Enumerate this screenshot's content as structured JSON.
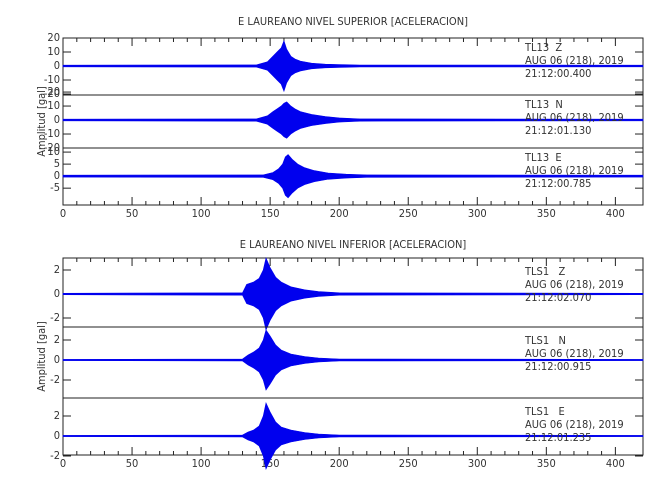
{
  "chart_data": [
    {
      "type": "area",
      "title": "E LAUREANO NIVEL SUPERIOR [ACELERACION]",
      "ylabel": "Amplitud [gal]",
      "color": "#0000ee",
      "xlim": [
        0,
        420
      ],
      "xticks": [
        0,
        50,
        100,
        150,
        200,
        250,
        300,
        350,
        400
      ],
      "panels": [
        {
          "labels": [
            "TL13  Z",
            "AUG 06 (218), 2019",
            "21:12:00.400"
          ],
          "ylim": [
            -20.7,
            20
          ],
          "yticks": [
            -20,
            -10,
            0,
            10,
            20
          ],
          "x": [
            0,
            140,
            148,
            152,
            155,
            158,
            160,
            162,
            165,
            168,
            172,
            180,
            190,
            200,
            215,
            420
          ],
          "values": [
            0.6,
            0.8,
            3,
            7,
            10,
            13,
            18,
            12,
            7,
            5,
            3.5,
            2,
            1.3,
            1,
            0.7,
            0.6
          ]
        },
        {
          "labels": [
            "TL13  N",
            "AUG 06 (218), 2019",
            "21:12:01.130"
          ],
          "ylim": [
            -20,
            17.9
          ],
          "yticks": [
            -20,
            -10,
            0,
            10,
            20
          ],
          "x": [
            0,
            140,
            148,
            152,
            155,
            158,
            160,
            162,
            165,
            168,
            172,
            180,
            190,
            200,
            215,
            420
          ],
          "values": [
            0.6,
            0.8,
            3,
            6,
            8,
            10,
            12,
            13,
            10,
            8,
            6,
            4,
            2.5,
            1.5,
            0.8,
            0.6
          ]
        },
        {
          "labels": [
            "TL13  E",
            "AUG 06 (218), 2019",
            "21:12:00.785"
          ],
          "ylim": [
            -12,
            11.7
          ],
          "yticks": [
            -5,
            0,
            5,
            10
          ],
          "x": [
            0,
            145,
            152,
            156,
            159,
            161,
            163,
            166,
            170,
            175,
            182,
            192,
            205,
            220,
            420
          ],
          "values": [
            0.4,
            0.5,
            1.5,
            3,
            5,
            8,
            9,
            7,
            5,
            3.5,
            2.3,
            1.3,
            0.8,
            0.5,
            0.4
          ]
        }
      ]
    },
    {
      "type": "area",
      "title": "E LAUREANO NIVEL INFERIOR [ACELERACION]",
      "ylabel": "Amplitud [gal]",
      "color": "#0000ee",
      "xlim": [
        0,
        420
      ],
      "xticks": [
        0,
        50,
        100,
        150,
        200,
        250,
        300,
        350,
        400
      ],
      "panels": [
        {
          "labels": [
            "TLS1   Z",
            "AUG 06 (218), 2019",
            "21:12:02.070"
          ],
          "ylim": [
            -2.75,
            3
          ],
          "yticks": [
            -2,
            0,
            2
          ],
          "x": [
            0,
            130,
            133,
            138,
            142,
            145,
            147,
            150,
            154,
            158,
            165,
            175,
            185,
            200,
            420
          ],
          "values": [
            0.06,
            0.1,
            0.8,
            1,
            1.3,
            2,
            3,
            2.2,
            1.4,
            1,
            0.6,
            0.35,
            0.2,
            0.1,
            0.06
          ]
        },
        {
          "labels": [
            "TLS1   N",
            "AUG 06 (218), 2019",
            "21:12:00.915"
          ],
          "ylim": [
            -3.8,
            3.3
          ],
          "yticks": [
            -2,
            0,
            2
          ],
          "x": [
            0,
            130,
            134,
            138,
            142,
            145,
            147,
            150,
            154,
            158,
            165,
            175,
            185,
            200,
            420
          ],
          "values": [
            0.06,
            0.1,
            0.5,
            0.8,
            1.2,
            2,
            3,
            2.4,
            1.5,
            1,
            0.6,
            0.35,
            0.2,
            0.1,
            0.06
          ]
        },
        {
          "labels": [
            "TLS1   E",
            "AUG 06 (218), 2019",
            "21:12:01.235"
          ],
          "ylim": [
            -1.9,
            3.8
          ],
          "yticks": [
            -2,
            0,
            2
          ],
          "x": [
            0,
            130,
            134,
            138,
            142,
            145,
            147,
            150,
            154,
            158,
            165,
            175,
            185,
            200,
            420
          ],
          "values": [
            0.06,
            0.1,
            0.4,
            0.6,
            1,
            2,
            3.3,
            2.4,
            1.4,
            0.9,
            0.6,
            0.35,
            0.2,
            0.1,
            0.06
          ]
        }
      ]
    }
  ]
}
